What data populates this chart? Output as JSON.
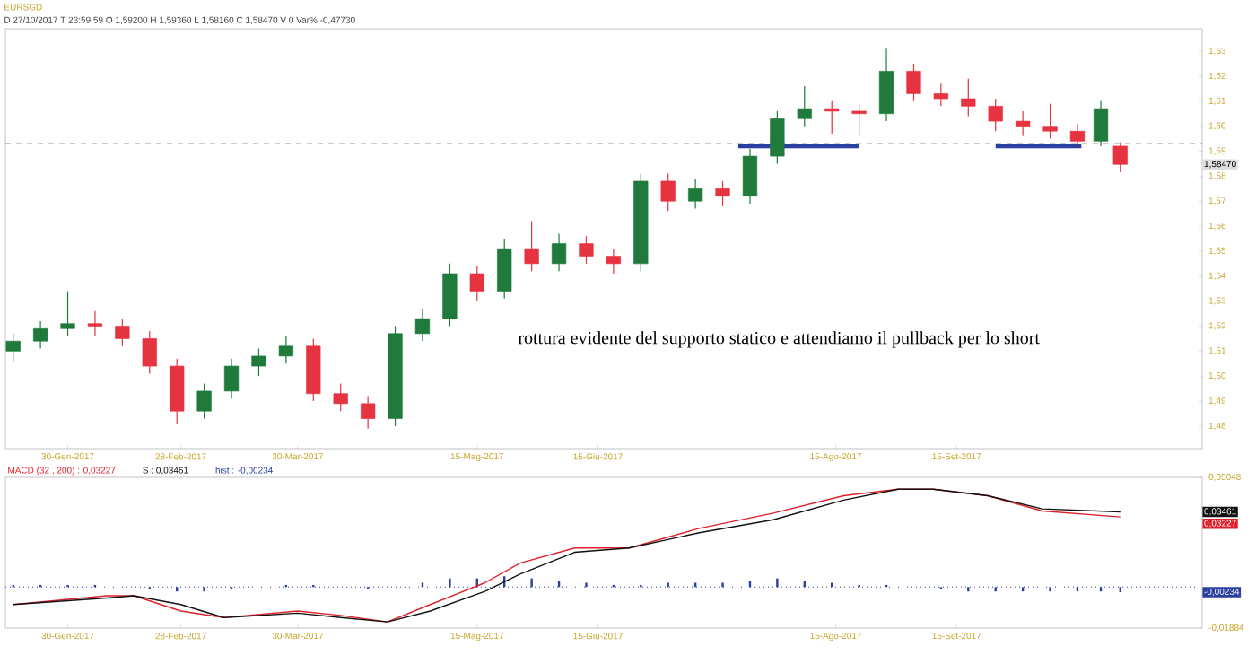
{
  "chart_data": [
    {
      "type": "candlestick",
      "title": "EURSGD",
      "subtitle": "D 27/10/2017 T 23:59:59 O 1,59200 H 1,59360 L 1,58160 C 1,58470 V 0 Var% -0,47730",
      "x": [
        "2017-01-16",
        "2017-01-23",
        "2017-01-30",
        "2017-02-06",
        "2017-02-13",
        "2017-02-20",
        "2017-02-27",
        "2017-03-06",
        "2017-03-13",
        "2017-03-20",
        "2017-03-27",
        "2017-04-03",
        "2017-04-10",
        "2017-04-17",
        "2017-04-24",
        "2017-05-01",
        "2017-05-08",
        "2017-05-15",
        "2017-05-22",
        "2017-05-29",
        "2017-06-05",
        "2017-06-12",
        "2017-06-19",
        "2017-06-26",
        "2017-07-03",
        "2017-07-10",
        "2017-07-17",
        "2017-07-24",
        "2017-07-31",
        "2017-08-07",
        "2017-08-14",
        "2017-08-21",
        "2017-08-28",
        "2017-09-04",
        "2017-09-11",
        "2017-09-18",
        "2017-09-25",
        "2017-10-02",
        "2017-10-09",
        "2017-10-16",
        "2017-10-22",
        "2017-10-27"
      ],
      "ohlc": [
        [
          1.51,
          1.517,
          1.506,
          1.514
        ],
        [
          1.514,
          1.522,
          1.511,
          1.519
        ],
        [
          1.519,
          1.534,
          1.516,
          1.521
        ],
        [
          1.521,
          1.526,
          1.516,
          1.52
        ],
        [
          1.52,
          1.523,
          1.512,
          1.515
        ],
        [
          1.515,
          1.518,
          1.501,
          1.504
        ],
        [
          1.504,
          1.507,
          1.481,
          1.486
        ],
        [
          1.486,
          1.497,
          1.483,
          1.494
        ],
        [
          1.494,
          1.507,
          1.491,
          1.504
        ],
        [
          1.504,
          1.511,
          1.5,
          1.508
        ],
        [
          1.508,
          1.516,
          1.505,
          1.512
        ],
        [
          1.512,
          1.515,
          1.49,
          1.493
        ],
        [
          1.493,
          1.497,
          1.486,
          1.489
        ],
        [
          1.489,
          1.492,
          1.479,
          1.483
        ],
        [
          1.483,
          1.52,
          1.48,
          1.517
        ],
        [
          1.517,
          1.527,
          1.514,
          1.523
        ],
        [
          1.523,
          1.545,
          1.52,
          1.541
        ],
        [
          1.541,
          1.544,
          1.53,
          1.534
        ],
        [
          1.534,
          1.555,
          1.531,
          1.551
        ],
        [
          1.551,
          1.562,
          1.542,
          1.545
        ],
        [
          1.545,
          1.557,
          1.542,
          1.553
        ],
        [
          1.553,
          1.556,
          1.545,
          1.548
        ],
        [
          1.548,
          1.551,
          1.541,
          1.545
        ],
        [
          1.545,
          1.581,
          1.542,
          1.578
        ],
        [
          1.578,
          1.581,
          1.566,
          1.57
        ],
        [
          1.57,
          1.579,
          1.567,
          1.575
        ],
        [
          1.575,
          1.578,
          1.568,
          1.572
        ],
        [
          1.572,
          1.591,
          1.569,
          1.588
        ],
        [
          1.588,
          1.606,
          1.585,
          1.603
        ],
        [
          1.603,
          1.616,
          1.6,
          1.607
        ],
        [
          1.607,
          1.61,
          1.597,
          1.606
        ],
        [
          1.606,
          1.609,
          1.596,
          1.605
        ],
        [
          1.605,
          1.631,
          1.602,
          1.622
        ],
        [
          1.622,
          1.625,
          1.61,
          1.613
        ],
        [
          1.613,
          1.617,
          1.608,
          1.611
        ],
        [
          1.611,
          1.619,
          1.604,
          1.608
        ],
        [
          1.608,
          1.611,
          1.598,
          1.602
        ],
        [
          1.602,
          1.606,
          1.596,
          1.6
        ],
        [
          1.6,
          1.609,
          1.595,
          1.598
        ],
        [
          1.598,
          1.601,
          1.592,
          1.594
        ],
        [
          1.594,
          1.61,
          1.592,
          1.607
        ],
        [
          1.592,
          1.5936,
          1.5816,
          1.5847
        ]
      ],
      "colors": [
        "#1f7a3c",
        "#1f7a3c",
        "#1f7a3c",
        "#e5333f",
        "#e5333f",
        "#e5333f",
        "#e5333f",
        "#1f7a3c",
        "#1f7a3c",
        "#1f7a3c",
        "#1f7a3c",
        "#e5333f",
        "#e5333f",
        "#e5333f",
        "#1f7a3c",
        "#1f7a3c",
        "#1f7a3c",
        "#e5333f",
        "#1f7a3c",
        "#e5333f",
        "#1f7a3c",
        "#e5333f",
        "#e5333f",
        "#1f7a3c",
        "#e5333f",
        "#1f7a3c",
        "#e5333f",
        "#1f7a3c",
        "#1f7a3c",
        "#1f7a3c",
        "#e5333f",
        "#e5333f",
        "#1f7a3c",
        "#e5333f",
        "#e5333f",
        "#e5333f",
        "#e5333f",
        "#e5333f",
        "#e5333f",
        "#e5333f",
        "#1f7a3c",
        "#e5333f"
      ],
      "series": [
        {
          "type": "line",
          "color": "#2b3f9e",
          "x": [
            "2017-07-21",
            "2017-08-21",
            "2017-09-05",
            "2017-09-25",
            "2017-10-17"
          ],
          "values": [
            1.592,
            1.592,
            null,
            1.592,
            1.592
          ]
        }
      ],
      "xlim": [
        "2017-01-14",
        "2017-11-17"
      ],
      "xticks": [
        {
          "value": "2017-01-30",
          "label": "30-Gen-2017"
        },
        {
          "value": "2017-02-28",
          "label": "28-Feb-2017"
        },
        {
          "value": "2017-03-30",
          "label": "30-Mar-2017"
        },
        {
          "value": "2017-05-15",
          "label": "15-Mag-2017"
        },
        {
          "value": "2017-06-15",
          "label": "15-Giu-2017"
        },
        {
          "value": "2017-08-15",
          "label": "15-Ago-2017"
        },
        {
          "value": "2017-09-15",
          "label": "15-Set-2017"
        }
      ],
      "ylim": [
        1.471,
        1.639
      ],
      "yticks": [
        {
          "value": 1.48,
          "label": "1,48"
        },
        {
          "value": 1.49,
          "label": "1,49"
        },
        {
          "value": 1.5,
          "label": "1,50"
        },
        {
          "value": 1.51,
          "label": "1,51"
        },
        {
          "value": 1.52,
          "label": "1,52"
        },
        {
          "value": 1.53,
          "label": "1,53"
        },
        {
          "value": 1.54,
          "label": "1,54"
        },
        {
          "value": 1.55,
          "label": "1,55"
        },
        {
          "value": 1.56,
          "label": "1,56"
        },
        {
          "value": 1.57,
          "label": "1,57"
        },
        {
          "value": 1.58,
          "label": "1,58"
        },
        {
          "value": 1.59,
          "label": "1,59"
        },
        {
          "value": 1.6,
          "label": "1,60"
        },
        {
          "value": 1.61,
          "label": "1,61"
        },
        {
          "value": 1.62,
          "label": "1,62"
        },
        {
          "value": 1.63,
          "label": "1,63"
        }
      ],
      "ref_lines": [
        {
          "axis": "y",
          "value": 1.593,
          "line_style": "dashed",
          "color": "#333333"
        }
      ],
      "annotations": [
        "rottura evidente del supporto statico e attendiamo il pullback per lo short",
        "1,58470"
      ]
    },
    {
      "type": "line",
      "legend": "top left",
      "series": [
        {
          "name": "MACD (32 , 200) : 0,03227",
          "color": "#e0202a",
          "x": [
            "2017-01-16",
            "2017-02-09",
            "2017-02-16",
            "2017-02-28",
            "2017-03-11",
            "2017-03-30",
            "2017-04-10",
            "2017-04-22",
            "2017-05-03",
            "2017-05-17",
            "2017-05-26",
            "2017-06-09",
            "2017-06-23",
            "2017-07-11",
            "2017-07-30",
            "2017-08-17",
            "2017-08-31",
            "2017-09-09",
            "2017-09-23",
            "2017-10-07",
            "2017-10-27"
          ],
          "values": [
            -0.008,
            -0.004,
            -0.004,
            -0.011,
            -0.014,
            -0.011,
            -0.013,
            -0.016,
            -0.008,
            0.002,
            0.011,
            0.018,
            0.018,
            0.027,
            0.034,
            0.042,
            0.045,
            0.045,
            0.042,
            0.035,
            0.03227
          ]
        },
        {
          "name": "S : 0,03461",
          "color": "#111111",
          "x": [
            "2017-01-16",
            "2017-02-09",
            "2017-02-16",
            "2017-02-28",
            "2017-03-11",
            "2017-03-30",
            "2017-04-10",
            "2017-04-22",
            "2017-05-03",
            "2017-05-17",
            "2017-05-26",
            "2017-06-09",
            "2017-06-23",
            "2017-07-11",
            "2017-07-30",
            "2017-08-17",
            "2017-08-31",
            "2017-09-09",
            "2017-09-23",
            "2017-10-07",
            "2017-10-27"
          ],
          "values": [
            -0.008,
            -0.005,
            -0.004,
            -0.008,
            -0.014,
            -0.012,
            -0.014,
            -0.016,
            -0.011,
            -0.002,
            0.006,
            0.016,
            0.018,
            0.025,
            0.031,
            0.04,
            0.045,
            0.045,
            0.042,
            0.036,
            0.03461
          ]
        },
        {
          "name": "hist : -0,00234",
          "type": "bar",
          "color": "#2b3f9e",
          "x": [
            "2017-01-16",
            "2017-01-23",
            "2017-01-30",
            "2017-02-06",
            "2017-02-13",
            "2017-02-20",
            "2017-02-27",
            "2017-03-06",
            "2017-03-13",
            "2017-03-20",
            "2017-03-27",
            "2017-04-03",
            "2017-04-10",
            "2017-04-17",
            "2017-04-24",
            "2017-05-01",
            "2017-05-08",
            "2017-05-15",
            "2017-05-22",
            "2017-05-29",
            "2017-06-05",
            "2017-06-12",
            "2017-06-19",
            "2017-06-26",
            "2017-07-03",
            "2017-07-10",
            "2017-07-17",
            "2017-07-24",
            "2017-07-31",
            "2017-08-07",
            "2017-08-14",
            "2017-08-21",
            "2017-08-28",
            "2017-09-04",
            "2017-09-11",
            "2017-09-18",
            "2017-09-25",
            "2017-10-02",
            "2017-10-09",
            "2017-10-16",
            "2017-10-22",
            "2017-10-27"
          ],
          "values": [
            0.001,
            0.001,
            0.001,
            0.001,
            0,
            -0.001,
            -0.002,
            -0.002,
            -0.001,
            0,
            0.001,
            0.001,
            0,
            -0.001,
            0,
            0.002,
            0.004,
            0.004,
            0.005,
            0.004,
            0.003,
            0.002,
            0.001,
            0.001,
            0.002,
            0.002,
            0.002,
            0.003,
            0.004,
            0.003,
            0.002,
            0.001,
            0.001,
            0,
            -0.001,
            -0.002,
            -0.002,
            -0.002,
            -0.002,
            -0.002,
            -0.002,
            -0.00234
          ]
        }
      ],
      "xlim": [
        "2017-01-14",
        "2017-11-17"
      ],
      "xticks": [
        {
          "value": "2017-01-30",
          "label": "30-Gen-2017"
        },
        {
          "value": "2017-02-28",
          "label": "28-Feb-2017"
        },
        {
          "value": "2017-03-30",
          "label": "30-Mar-2017"
        },
        {
          "value": "2017-05-15",
          "label": "15-Mag-2017"
        },
        {
          "value": "2017-06-15",
          "label": "15-Giu-2017"
        },
        {
          "value": "2017-08-15",
          "label": "15-Ago-2017"
        },
        {
          "value": "2017-09-15",
          "label": "15-Set-2017"
        }
      ],
      "ylim": [
        -0.01884,
        0.05048
      ],
      "yticks": [
        {
          "value": -0.01884,
          "label": "-0,01884"
        },
        {
          "value": 0.05048,
          "label": "0,05048"
        }
      ],
      "ref_lines": [
        {
          "axis": "y",
          "value": 0,
          "line_style": "dotted",
          "color": "#2b3f9e"
        }
      ],
      "annotations": [
        "0,03227",
        "0,03461",
        "-0,00234"
      ]
    }
  ]
}
